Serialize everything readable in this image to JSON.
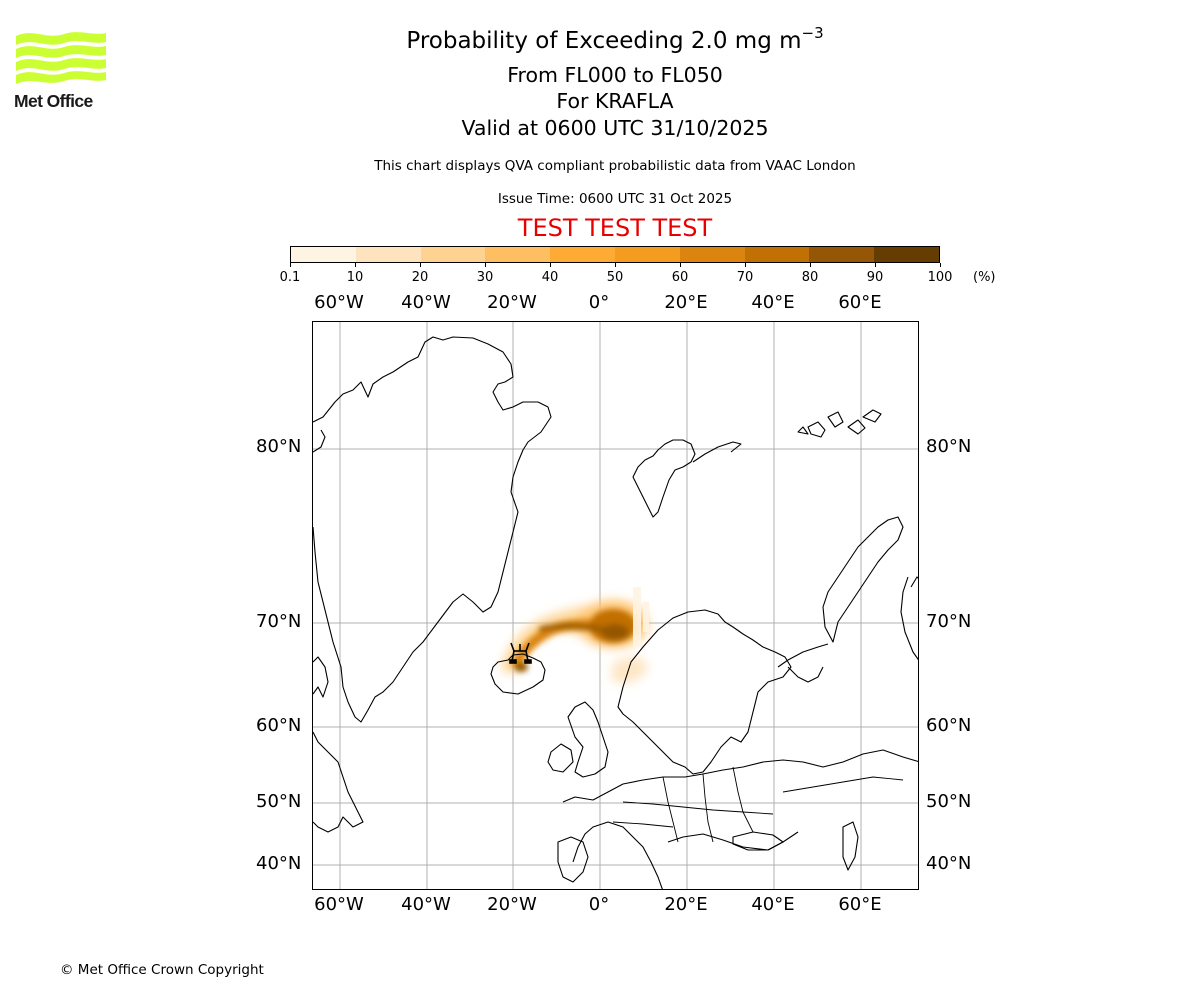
{
  "logo": {
    "name": "Met Office",
    "icon": "met-office-wave-logo",
    "color": "#ccff33"
  },
  "header": {
    "title_prefix": "Probability of Exceeding 2.0 mg m",
    "title_superscript": "−3",
    "flight_levels": "From FL000 to FL050",
    "volcano": "For KRAFLA",
    "valid_time": "Valid at 0600 UTC 31/10/2025",
    "description": "This chart displays QVA compliant probabilistic data from VAAC London",
    "issue_time": "Issue Time: 0600 UTC 31 Oct 2025",
    "test_banner": "TEST TEST TEST",
    "test_banner_color": "#e60000"
  },
  "colorbar": {
    "unit_label": "(%)",
    "tick_labels": [
      "0.1",
      "10",
      "20",
      "30",
      "40",
      "50",
      "60",
      "70",
      "80",
      "90",
      "100"
    ],
    "colors": [
      "#fef4e3",
      "#fee3bf",
      "#fed391",
      "#febf63",
      "#fdab35",
      "#f39c1f",
      "#db8410",
      "#c17004",
      "#955705",
      "#653c02"
    ]
  },
  "map": {
    "top_lon_labels": [
      "60°W",
      "40°W",
      "20°W",
      "0°",
      "20°E",
      "40°E",
      "60°E"
    ],
    "bottom_lon_labels": [
      "60°W",
      "40°W",
      "20°W",
      "0°",
      "20°E",
      "40°E",
      "60°E"
    ],
    "left_lat_labels": [
      "80°N",
      "70°N",
      "60°N",
      "50°N",
      "40°N"
    ],
    "right_lat_labels": [
      "80°N",
      "70°N",
      "60°N",
      "50°N",
      "40°N"
    ],
    "gridline_color": "#b0b0b0",
    "volcano_marker": "volcano-icon",
    "volcano_location": "Krafla, Iceland"
  },
  "footer": {
    "copyright": "© Met Office Crown Copyright"
  }
}
